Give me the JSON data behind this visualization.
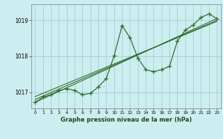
{
  "title": "Graphe pression niveau de la mer (hPa)",
  "bg_color": "#cceef0",
  "grid_color": "#aacccc",
  "line_color": "#2d6e2d",
  "ylim": [
    1016.55,
    1019.45
  ],
  "xlim": [
    -0.5,
    23.5
  ],
  "yticks": [
    1017,
    1018,
    1019
  ],
  "xticks": [
    0,
    1,
    2,
    3,
    4,
    5,
    6,
    7,
    8,
    9,
    10,
    11,
    12,
    13,
    14,
    15,
    16,
    17,
    18,
    19,
    20,
    21,
    22,
    23
  ],
  "main_series": [
    [
      0,
      1016.72
    ],
    [
      1,
      1016.87
    ],
    [
      2,
      1016.93
    ],
    [
      3,
      1017.05
    ],
    [
      4,
      1017.1
    ],
    [
      5,
      1017.05
    ],
    [
      6,
      1016.93
    ],
    [
      7,
      1016.97
    ],
    [
      8,
      1017.15
    ],
    [
      9,
      1017.38
    ],
    [
      10,
      1018.02
    ],
    [
      11,
      1018.85
    ],
    [
      12,
      1018.52
    ],
    [
      13,
      1017.95
    ],
    [
      14,
      1017.63
    ],
    [
      15,
      1017.57
    ],
    [
      16,
      1017.63
    ],
    [
      17,
      1017.72
    ],
    [
      18,
      1018.42
    ],
    [
      19,
      1018.73
    ],
    [
      20,
      1018.87
    ],
    [
      21,
      1019.08
    ],
    [
      22,
      1019.18
    ],
    [
      23,
      1019.05
    ]
  ],
  "trend_line1": [
    [
      0,
      1016.72
    ],
    [
      23,
      1019.05
    ]
  ],
  "trend_line2": [
    [
      0,
      1016.8
    ],
    [
      23,
      1019.0
    ]
  ],
  "trend_line3": [
    [
      0,
      1016.88
    ],
    [
      23,
      1018.97
    ]
  ]
}
